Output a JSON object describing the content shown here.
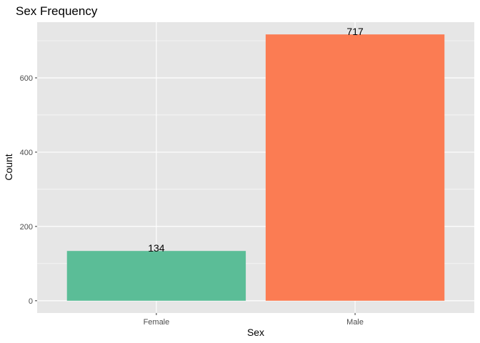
{
  "chart_data": {
    "type": "bar",
    "title": "Sex Frequency",
    "xlabel": "Sex",
    "ylabel": "Count",
    "categories": [
      "Female",
      "Male"
    ],
    "values": [
      134,
      717
    ],
    "data_labels": [
      "134",
      "717"
    ],
    "colors": [
      "#5bbd97",
      "#fb7c53"
    ],
    "ylim": [
      0,
      750
    ],
    "yticks": [
      0,
      200,
      400,
      600
    ],
    "ytick_labels": [
      "0",
      "200",
      "400",
      "600"
    ],
    "grid": true,
    "legend": "none",
    "panel_color": "#e6e6e6",
    "grid_color": "#ffffff"
  }
}
